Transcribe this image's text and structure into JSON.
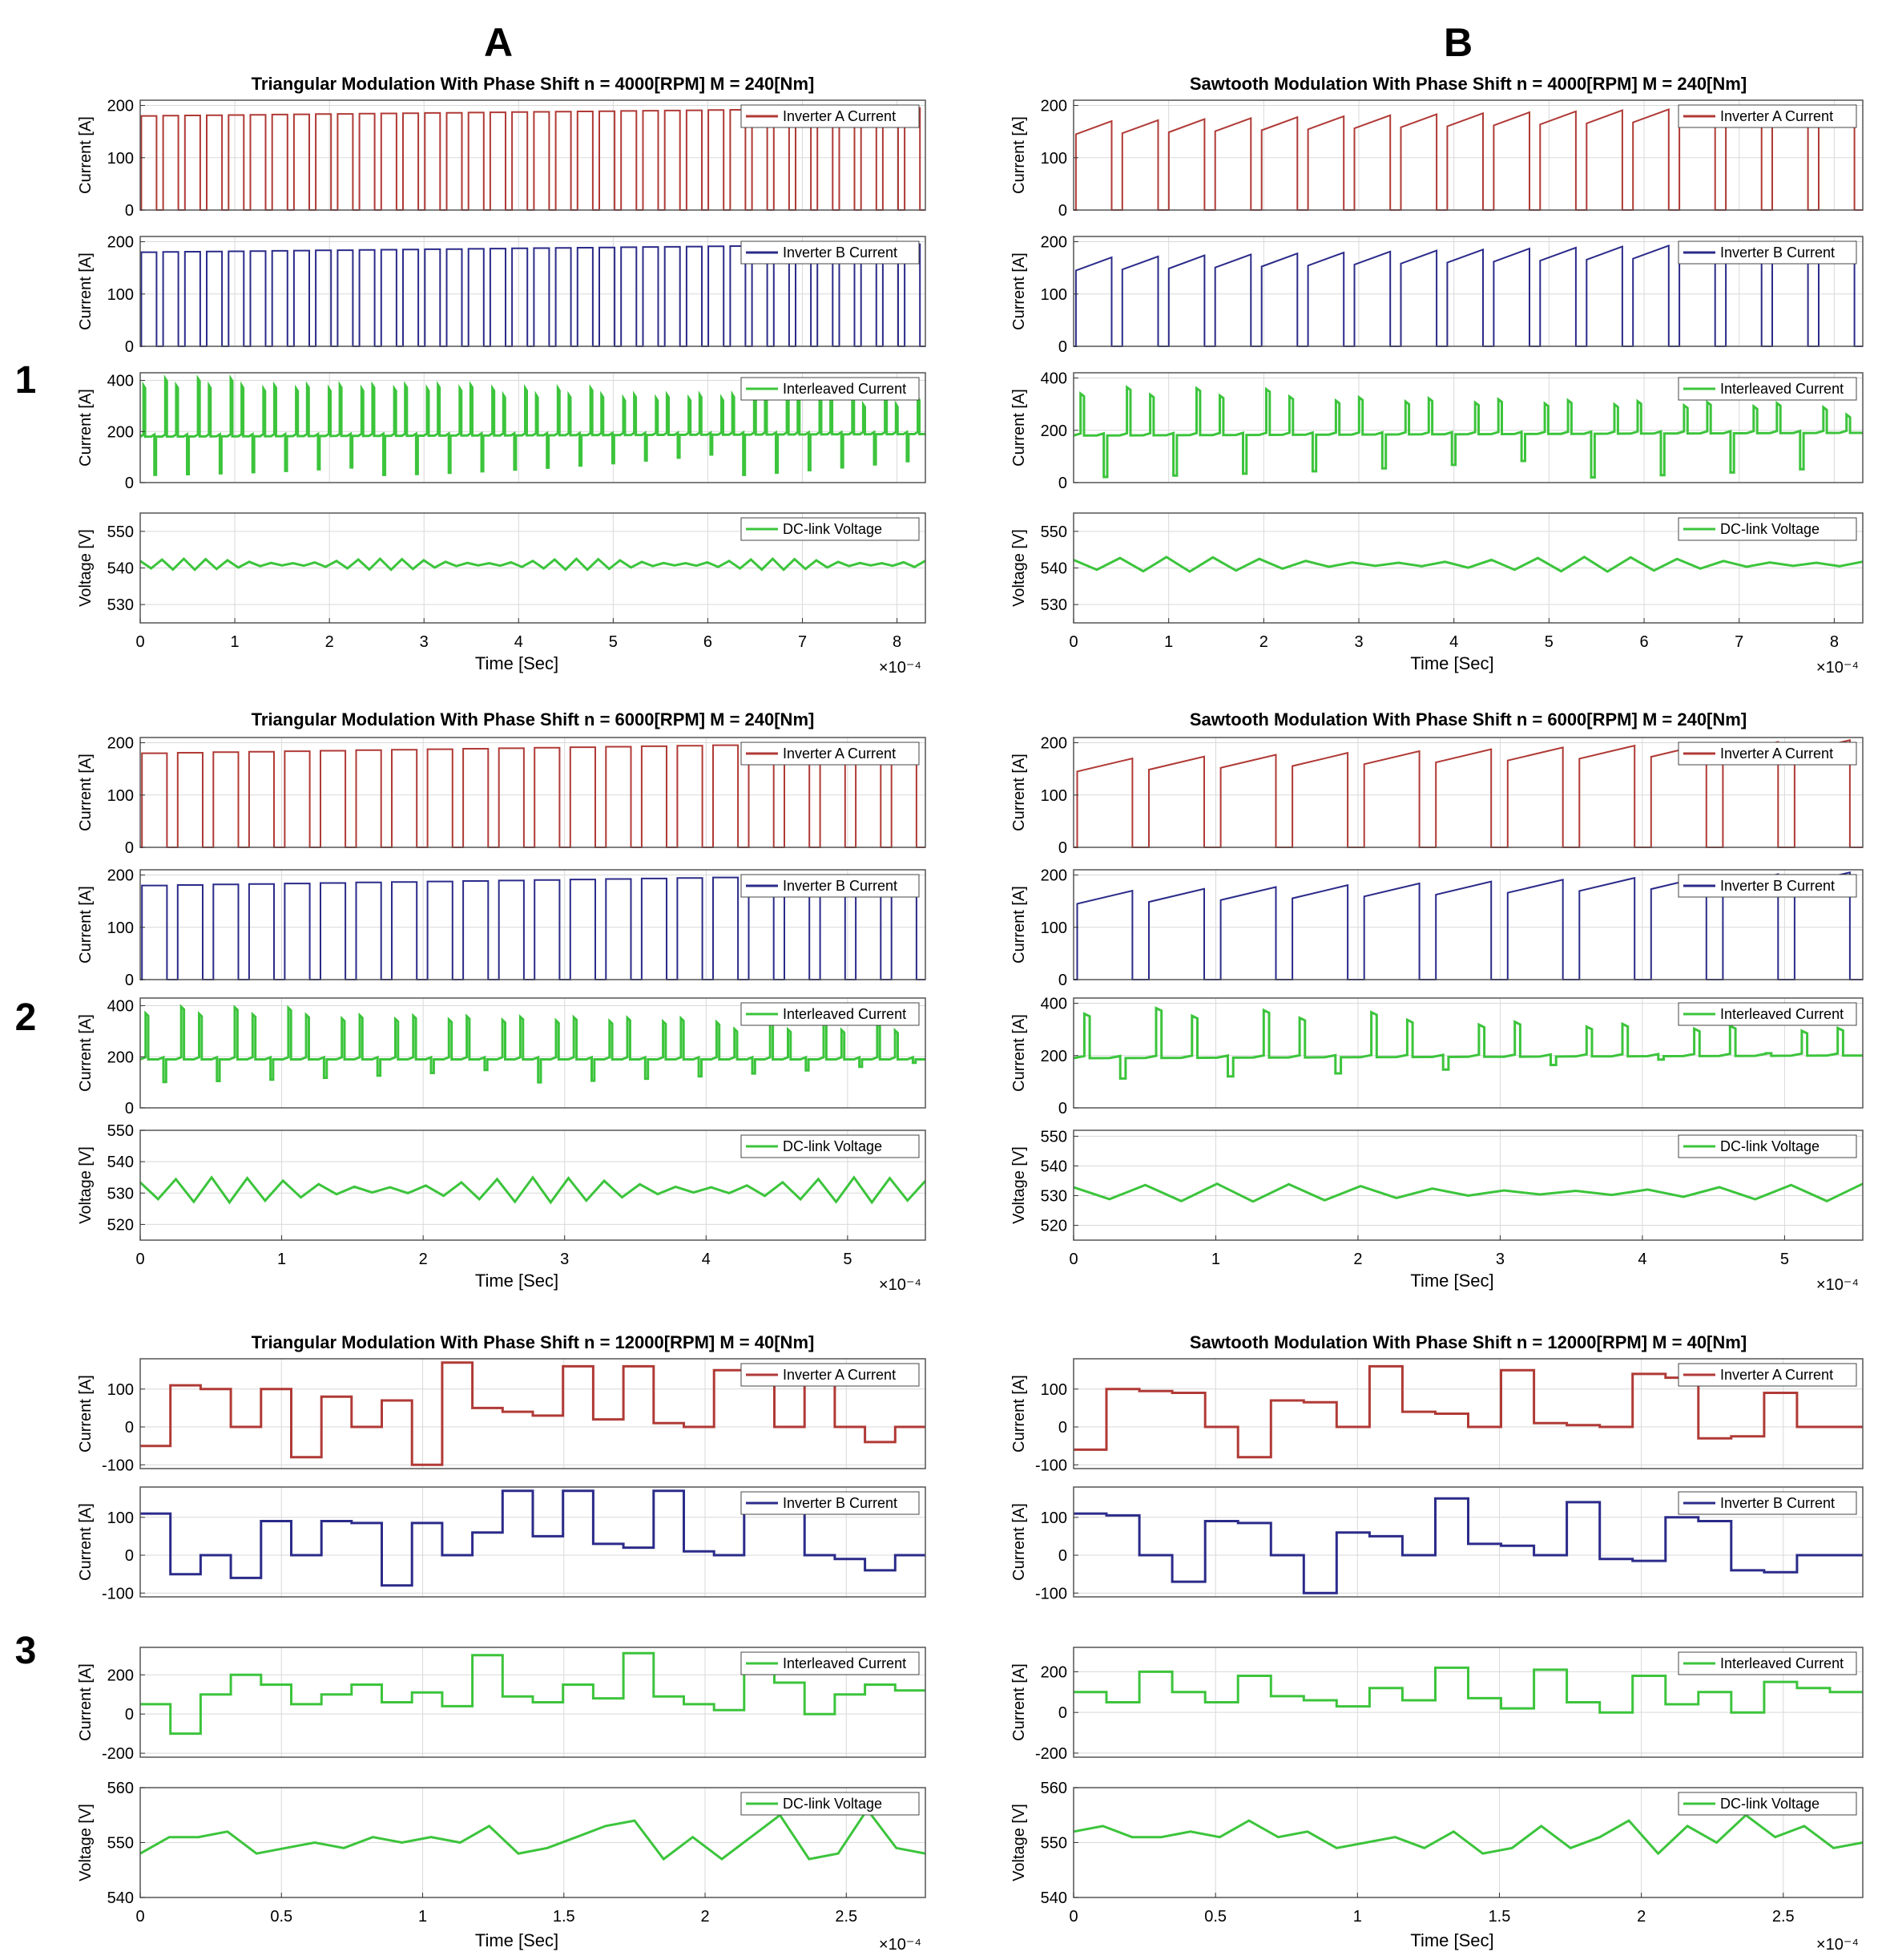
{
  "column_labels": [
    "A",
    "B"
  ],
  "row_labels": [
    "1",
    "2",
    "3"
  ],
  "colors": {
    "inverter_a": "#b03a36",
    "inverter_b": "#2b2b8a",
    "interleaved": "#3cc43c",
    "dc_link": "#3cc43c",
    "grid": "#d9d9d9",
    "frame": "#555555"
  },
  "chart_data": [
    {
      "id": "A1",
      "type": "line",
      "title": "Triangular Modulation With Phase Shift n = 4000[RPM] M = 240[Nm]",
      "xlabel": "Time [Sec]",
      "x_multiplier": "×10⁻⁴",
      "xlim": [
        0,
        8.3
      ],
      "xticks": [
        0,
        1,
        2,
        3,
        4,
        5,
        6,
        7,
        8
      ],
      "pattern": "tri",
      "pulses": 36,
      "subplots": [
        {
          "ylabel": "Current [A]",
          "ylim": [
            0,
            210
          ],
          "yticks": [
            0,
            100,
            200
          ],
          "legend": "Inverter A Current",
          "color": "#b03a36",
          "signal": "pwm",
          "high_start": 180,
          "high_end": 195,
          "low": 0
        },
        {
          "ylabel": "Current [A]",
          "ylim": [
            0,
            210
          ],
          "yticks": [
            0,
            100,
            200
          ],
          "legend": "Inverter B Current",
          "color": "#2b2b8a",
          "signal": "pwm",
          "high_start": 180,
          "high_end": 195,
          "low": 0
        },
        {
          "ylabel": "Current [A]",
          "ylim": [
            0,
            430
          ],
          "yticks": [
            0,
            200,
            400
          ],
          "legend": "Interleaved Current",
          "color": "#3cc43c",
          "signal": "sum",
          "base_start": 180,
          "base_end": 190,
          "peak": 380,
          "dip": 30
        },
        {
          "ylabel": "Voltage [V]",
          "ylim": [
            525,
            555
          ],
          "yticks": [
            530,
            540,
            550
          ],
          "legend": "DC-link Voltage",
          "color": "#3cc43c",
          "signal": "ripple",
          "mean": 541,
          "amp": 1.5
        }
      ]
    },
    {
      "id": "B1",
      "type": "line",
      "title": "Sawtooth Modulation With Phase Shift n = 4000[RPM] M = 240[Nm]",
      "xlabel": "Time [Sec]",
      "x_multiplier": "×10⁻⁴",
      "xlim": [
        0,
        8.3
      ],
      "xticks": [
        0,
        1,
        2,
        3,
        4,
        5,
        6,
        7,
        8
      ],
      "pattern": "saw",
      "pulses": 17,
      "subplots": [
        {
          "ylabel": "Current [A]",
          "ylim": [
            0,
            210
          ],
          "yticks": [
            0,
            100,
            200
          ],
          "legend": "Inverter A Current",
          "color": "#b03a36",
          "signal": "pwm",
          "high_start": 170,
          "high_end": 200,
          "low": 0
        },
        {
          "ylabel": "Current [A]",
          "ylim": [
            0,
            210
          ],
          "yticks": [
            0,
            100,
            200
          ],
          "legend": "Inverter B Current",
          "color": "#2b2b8a",
          "signal": "pwm",
          "high_start": 170,
          "high_end": 200,
          "low": 0
        },
        {
          "ylabel": "Current [A]",
          "ylim": [
            0,
            420
          ],
          "yticks": [
            0,
            200,
            400
          ],
          "legend": "Interleaved Current",
          "color": "#3cc43c",
          "signal": "sum",
          "base_start": 180,
          "base_end": 190,
          "peak": 340,
          "dip": 20
        },
        {
          "ylabel": "Voltage [V]",
          "ylim": [
            525,
            555
          ],
          "yticks": [
            530,
            540,
            550
          ],
          "legend": "DC-link Voltage",
          "color": "#3cc43c",
          "signal": "ripple",
          "mean": 541,
          "amp": 2
        }
      ]
    },
    {
      "id": "A2",
      "type": "line",
      "title": "Triangular Modulation With Phase Shift n = 6000[RPM] M = 240[Nm]",
      "xlabel": "Time [Sec]",
      "x_multiplier": "×10⁻⁴",
      "xlim": [
        0,
        5.55
      ],
      "xticks": [
        0,
        1,
        2,
        3,
        4,
        5
      ],
      "pattern": "tri",
      "pulses": 22,
      "subplots": [
        {
          "ylabel": "Current [A]",
          "ylim": [
            0,
            210
          ],
          "yticks": [
            0,
            100,
            200
          ],
          "legend": "Inverter A Current",
          "color": "#b03a36",
          "signal": "pwm",
          "high_start": 180,
          "high_end": 200,
          "low": 0
        },
        {
          "ylabel": "Current [A]",
          "ylim": [
            0,
            210
          ],
          "yticks": [
            0,
            100,
            200
          ],
          "legend": "Inverter B Current",
          "color": "#2b2b8a",
          "signal": "pwm",
          "high_start": 180,
          "high_end": 200,
          "low": 0
        },
        {
          "ylabel": "Current [A]",
          "ylim": [
            0,
            430
          ],
          "yticks": [
            0,
            200,
            400
          ],
          "legend": "Interleaved Current",
          "color": "#3cc43c",
          "signal": "sum",
          "base_start": 190,
          "base_end": 190,
          "peak": 370,
          "dip": 100
        },
        {
          "ylabel": "Voltage [V]",
          "ylim": [
            515,
            550
          ],
          "yticks": [
            520,
            530,
            540,
            550
          ],
          "legend": "DC-link Voltage",
          "color": "#3cc43c",
          "signal": "ripple",
          "mean": 531,
          "amp": 4
        }
      ]
    },
    {
      "id": "B2",
      "type": "line",
      "title": "Sawtooth Modulation With Phase Shift n = 6000[RPM] M = 240[Nm]",
      "xlabel": "Time [Sec]",
      "x_multiplier": "×10⁻⁴",
      "xlim": [
        0,
        5.55
      ],
      "xticks": [
        0,
        1,
        2,
        3,
        4,
        5
      ],
      "pattern": "saw",
      "pulses": 11,
      "subplots": [
        {
          "ylabel": "Current [A]",
          "ylim": [
            0,
            210
          ],
          "yticks": [
            0,
            100,
            200
          ],
          "legend": "Inverter A Current",
          "color": "#b03a36",
          "signal": "pwm",
          "high_start": 170,
          "high_end": 205,
          "low": 0
        },
        {
          "ylabel": "Current [A]",
          "ylim": [
            0,
            210
          ],
          "yticks": [
            0,
            100,
            200
          ],
          "legend": "Inverter B Current",
          "color": "#2b2b8a",
          "signal": "pwm",
          "high_start": 170,
          "high_end": 205,
          "low": 0
        },
        {
          "ylabel": "Current [A]",
          "ylim": [
            0,
            420
          ],
          "yticks": [
            0,
            200,
            400
          ],
          "legend": "Interleaved Current",
          "color": "#3cc43c",
          "signal": "sum",
          "base_start": 190,
          "base_end": 200,
          "peak": 360,
          "dip": 110
        },
        {
          "ylabel": "Voltage [V]",
          "ylim": [
            515,
            552
          ],
          "yticks": [
            520,
            530,
            540,
            550
          ],
          "legend": "DC-link Voltage",
          "color": "#3cc43c",
          "signal": "ripple",
          "mean": 531,
          "amp": 3
        }
      ]
    },
    {
      "id": "A3",
      "type": "line",
      "title": "Triangular Modulation With Phase Shift n = 12000[RPM] M = 40[Nm]",
      "xlabel": "Time [Sec]",
      "x_multiplier": "×10⁻⁴",
      "xlim": [
        0,
        2.78
      ],
      "xticks": [
        0,
        0.5,
        1,
        1.5,
        2,
        2.5
      ],
      "pattern": "step",
      "subplots": [
        {
          "ylabel": "Current [A]",
          "ylim": [
            -110,
            180
          ],
          "yticks": [
            -100,
            0,
            100
          ],
          "legend": "Inverter A Current",
          "color": "#b03a36",
          "signal": "steps",
          "values": [
            -50,
            110,
            100,
            0,
            100,
            -80,
            80,
            0,
            70,
            -100,
            170,
            50,
            40,
            30,
            160,
            20,
            160,
            10,
            0,
            150,
            140,
            0,
            140,
            0,
            -40,
            0
          ]
        },
        {
          "ylabel": "Current [A]",
          "ylim": [
            -110,
            180
          ],
          "yticks": [
            -100,
            0,
            100
          ],
          "legend": "Inverter B Current",
          "color": "#2b2b8a",
          "signal": "steps",
          "values": [
            110,
            -50,
            0,
            -60,
            90,
            0,
            90,
            85,
            -80,
            85,
            0,
            60,
            170,
            50,
            170,
            30,
            20,
            170,
            10,
            0,
            150,
            150,
            0,
            -10,
            -40,
            0
          ]
        },
        {
          "ylabel": "Current [A]",
          "ylim": [
            -220,
            340
          ],
          "yticks": [
            -200,
            0,
            200
          ],
          "legend": "Interleaved Current",
          "color": "#3cc43c",
          "signal": "steps",
          "values": [
            50,
            -100,
            100,
            200,
            150,
            50,
            100,
            150,
            60,
            110,
            40,
            300,
            90,
            60,
            150,
            80,
            310,
            90,
            50,
            20,
            290,
            160,
            0,
            100,
            150,
            120
          ]
        },
        {
          "ylabel": "Voltage [V]",
          "ylim": [
            540,
            560
          ],
          "yticks": [
            540,
            550,
            560
          ],
          "legend": "DC-link Voltage",
          "color": "#3cc43c",
          "signal": "points",
          "values": [
            548,
            551,
            551,
            552,
            548,
            549,
            550,
            549,
            551,
            550,
            551,
            550,
            553,
            548,
            549,
            551,
            553,
            554,
            547,
            551,
            547,
            551,
            555,
            547,
            548,
            556,
            549,
            548
          ]
        }
      ]
    },
    {
      "id": "B3",
      "type": "line",
      "title": "Sawtooth Modulation With Phase Shift n = 12000[RPM] M = 40[Nm]",
      "xlabel": "Time [Sec]",
      "x_multiplier": "×10⁻⁴",
      "xlim": [
        0,
        2.78
      ],
      "xticks": [
        0,
        0.5,
        1,
        1.5,
        2,
        2.5
      ],
      "pattern": "step",
      "subplots": [
        {
          "ylabel": "Current [A]",
          "ylim": [
            -110,
            180
          ],
          "yticks": [
            -100,
            0,
            100
          ],
          "legend": "Inverter A Current",
          "color": "#b03a36",
          "signal": "steps",
          "values": [
            -60,
            100,
            95,
            90,
            0,
            -80,
            70,
            65,
            0,
            160,
            40,
            35,
            0,
            150,
            10,
            5,
            0,
            140,
            130,
            -30,
            -25,
            90,
            0,
            0
          ]
        },
        {
          "ylabel": "Current [A]",
          "ylim": [
            -110,
            180
          ],
          "yticks": [
            -100,
            0,
            100
          ],
          "legend": "Inverter B Current",
          "color": "#2b2b8a",
          "signal": "steps",
          "values": [
            110,
            105,
            0,
            -70,
            90,
            85,
            0,
            -100,
            60,
            50,
            0,
            150,
            30,
            25,
            0,
            140,
            -10,
            -15,
            100,
            90,
            -40,
            -45,
            0,
            0
          ]
        },
        {
          "ylabel": "Current [A]",
          "ylim": [
            -220,
            320
          ],
          "yticks": [
            -200,
            0,
            200
          ],
          "legend": "Interleaved Current",
          "color": "#3cc43c",
          "signal": "steps",
          "values": [
            100,
            50,
            200,
            100,
            50,
            180,
            80,
            60,
            30,
            120,
            60,
            220,
            70,
            20,
            210,
            50,
            0,
            180,
            40,
            100,
            0,
            150,
            120,
            100
          ]
        },
        {
          "ylabel": "Voltage [V]",
          "ylim": [
            540,
            560
          ],
          "yticks": [
            540,
            550,
            560
          ],
          "legend": "DC-link Voltage",
          "color": "#3cc43c",
          "signal": "points",
          "values": [
            552,
            553,
            551,
            551,
            552,
            551,
            554,
            551,
            552,
            549,
            550,
            551,
            549,
            552,
            548,
            549,
            553,
            549,
            551,
            554,
            548,
            553,
            550,
            555,
            551,
            553,
            549,
            550
          ]
        }
      ]
    }
  ]
}
